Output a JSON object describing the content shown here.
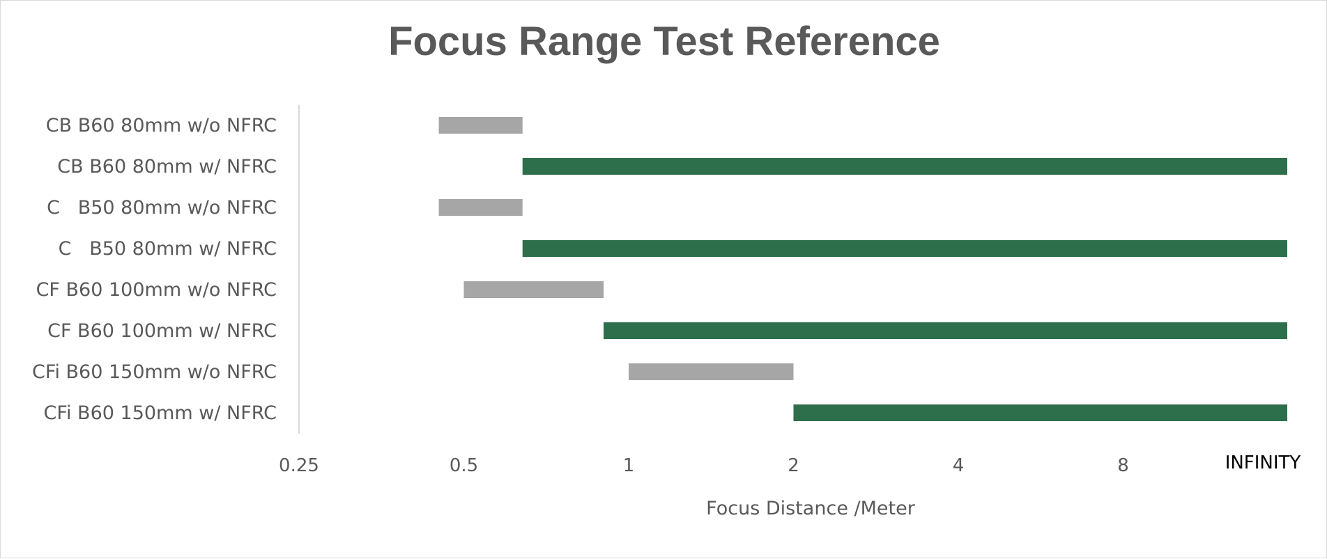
{
  "chart_data": {
    "type": "bar",
    "orientation": "horizontal",
    "title": "Focus Range Test Reference",
    "xlabel": "Focus Distance /Meter",
    "ylabel": "",
    "x_scale": "log2",
    "xlim": [
      0.25,
      "INFINITY"
    ],
    "x_ticks": [
      "0.25",
      "0.5",
      "1",
      "2",
      "4",
      "8"
    ],
    "infinity_label": "INFINITY",
    "grid": false,
    "legend": "none",
    "colors": {
      "without_nfrc": "#a6a6a6",
      "with_nfrc": "#2d6e4b",
      "axis": "#d9d9d9"
    },
    "categories": [
      "CB B60 80mm w/o NFRC",
      "CB B60 80mm w/ NFRC",
      "C   B50 80mm w/o NFRC",
      "C   B50 80mm w/ NFRC",
      "CF B60 100mm w/o NFRC",
      "CF B60 100mm w/ NFRC",
      "CFi B60 150mm w/o NFRC",
      "CFi B60 150mm w/ NFRC"
    ],
    "ranges": [
      {
        "start": 0.45,
        "end": 0.64,
        "nfrc": false
      },
      {
        "start": 0.64,
        "end": "INFINITY",
        "nfrc": true
      },
      {
        "start": 0.45,
        "end": 0.64,
        "nfrc": false
      },
      {
        "start": 0.64,
        "end": "INFINITY",
        "nfrc": true
      },
      {
        "start": 0.5,
        "end": 0.9,
        "nfrc": false
      },
      {
        "start": 0.9,
        "end": "INFINITY",
        "nfrc": true
      },
      {
        "start": 1.0,
        "end": 2.0,
        "nfrc": false
      },
      {
        "start": 2.0,
        "end": "INFINITY",
        "nfrc": true
      }
    ]
  }
}
